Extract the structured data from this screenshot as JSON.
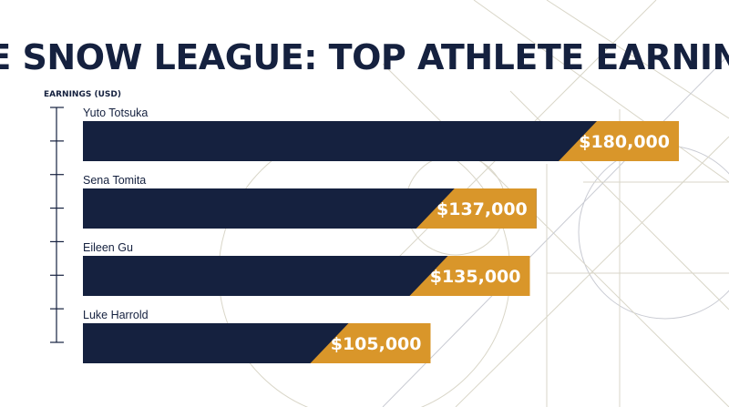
{
  "chart_data": {
    "type": "bar",
    "orientation": "horizontal",
    "title": "THE SNOW LEAGUE: TOP ATHLETE EARNINGS",
    "ylabel": "EARNINGS (USD)",
    "xlabel": "",
    "categories": [
      "Yuto Totsuka",
      "Sena Tomita",
      "Eileen Gu",
      "Luke Harrold"
    ],
    "values": [
      180000,
      137000,
      135000,
      105000
    ],
    "value_labels": [
      "$180,000",
      "$137,000",
      "$135,000",
      "$105,000"
    ],
    "xlim": [
      0,
      180000
    ],
    "grid": false,
    "legend": "none"
  },
  "colors": {
    "bar": "#15213f",
    "accent": "#d9962a",
    "text": "#15213f",
    "background": "#ffffff"
  }
}
